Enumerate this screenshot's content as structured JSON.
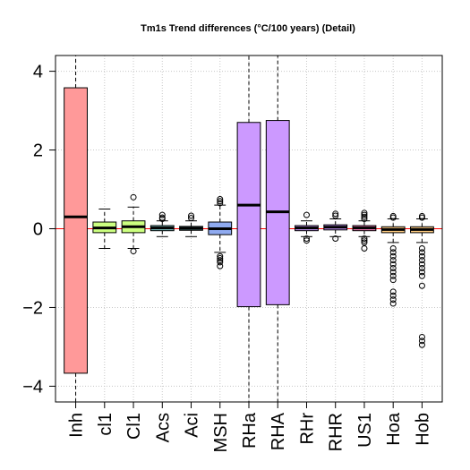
{
  "chart_data": {
    "type": "box",
    "title": "Tm1s Trend differences (°C/100 years) (Detail)",
    "xlabel": "",
    "ylabel": "",
    "ylim": [
      -4.4,
      4.4
    ],
    "yticks": [
      -4,
      -2,
      0,
      2,
      4
    ],
    "ytick_labels": [
      "−4",
      "−2",
      "0",
      "2",
      "4"
    ],
    "grid": true,
    "reference_line": {
      "y": 0,
      "color": "#ff0000"
    },
    "categories": [
      "Inh",
      "cl1",
      "Cl1",
      "Acs",
      "Aci",
      "MSH",
      "RHa",
      "RHA",
      "RHr",
      "RHR",
      "US1",
      "Hoa",
      "Hob"
    ],
    "boxes": [
      {
        "label": "Inh",
        "q1": -3.67,
        "median": 0.3,
        "q3": 3.58,
        "whisker_low": -4.4,
        "whisker_high": 4.4,
        "outliers": [],
        "color": "#ff9999",
        "whisker_style": "dashed"
      },
      {
        "label": "cl1",
        "q1": -0.1,
        "median": 0.02,
        "q3": 0.17,
        "whisker_low": -0.5,
        "whisker_high": 0.5,
        "outliers": [],
        "color": "#ccff80",
        "whisker_style": "dashed"
      },
      {
        "label": "Cl1",
        "q1": -0.1,
        "median": 0.05,
        "q3": 0.2,
        "whisker_low": -0.5,
        "whisker_high": 0.55,
        "outliers": [
          0.8,
          -0.57
        ],
        "color": "#ccff80",
        "whisker_style": "dashed"
      },
      {
        "label": "Acs",
        "q1": -0.05,
        "median": 0.02,
        "q3": 0.08,
        "whisker_low": -0.2,
        "whisker_high": 0.2,
        "outliers": [
          0.35,
          0.28,
          0.25
        ],
        "color": "#80c8c8",
        "whisker_style": "dashed"
      },
      {
        "label": "Aci",
        "q1": -0.04,
        "median": 0.01,
        "q3": 0.06,
        "whisker_low": -0.2,
        "whisker_high": 0.2,
        "outliers": [
          0.33,
          0.27
        ],
        "color": "#80c8c8",
        "whisker_style": "dashed"
      },
      {
        "label": "MSH",
        "q1": -0.15,
        "median": 0.0,
        "q3": 0.17,
        "whisker_low": -0.6,
        "whisker_high": 0.6,
        "outliers": [
          0.75,
          0.7,
          0.65,
          -0.7,
          -0.75,
          -0.8,
          -0.85,
          -0.95
        ],
        "color": "#8faaf0",
        "whisker_style": "dashed"
      },
      {
        "label": "RHa",
        "q1": -1.98,
        "median": 0.6,
        "q3": 2.7,
        "whisker_low": -4.4,
        "whisker_high": 4.4,
        "outliers": [],
        "color": "#cc99ff",
        "whisker_style": "dashed"
      },
      {
        "label": "RHA",
        "q1": -1.93,
        "median": 0.43,
        "q3": 2.75,
        "whisker_low": -4.4,
        "whisker_high": 4.4,
        "outliers": [],
        "color": "#cc99ff",
        "whisker_style": "dashed"
      },
      {
        "label": "RHr",
        "q1": -0.05,
        "median": 0.02,
        "q3": 0.08,
        "whisker_low": -0.2,
        "whisker_high": 0.2,
        "outliers": [
          0.35,
          -0.25,
          -0.3
        ],
        "color": "#cc99ff",
        "whisker_style": "dashed"
      },
      {
        "label": "RHR",
        "q1": -0.03,
        "median": 0.04,
        "q3": 0.1,
        "whisker_low": -0.2,
        "whisker_high": 0.25,
        "outliers": [
          0.38,
          0.33,
          -0.25
        ],
        "color": "#cc99ff",
        "whisker_style": "dashed"
      },
      {
        "label": "US1",
        "q1": -0.05,
        "median": 0.02,
        "q3": 0.08,
        "whisker_low": -0.2,
        "whisker_high": 0.2,
        "outliers": [
          0.4,
          0.35,
          0.3,
          0.25,
          -0.25,
          -0.3,
          -0.35,
          -0.5
        ],
        "color": "#ff80c0",
        "whisker_style": "dashed"
      },
      {
        "label": "Hoa",
        "q1": -0.1,
        "median": -0.02,
        "q3": 0.05,
        "whisker_low": -0.35,
        "whisker_high": 0.25,
        "outliers": [
          0.32,
          0.28,
          -0.5,
          -0.6,
          -0.7,
          -0.8,
          -0.9,
          -1.0,
          -1.1,
          -1.2,
          -1.3,
          -1.6,
          -1.7,
          -1.8,
          -1.9
        ],
        "color": "#ffcc80",
        "whisker_style": "dashed"
      },
      {
        "label": "Hob",
        "q1": -0.1,
        "median": -0.02,
        "q3": 0.05,
        "whisker_low": -0.35,
        "whisker_high": 0.25,
        "outliers": [
          0.32,
          0.28,
          -0.5,
          -0.6,
          -0.7,
          -0.8,
          -0.9,
          -1.0,
          -1.1,
          -1.2,
          -1.45,
          -2.75,
          -2.85,
          -2.95
        ],
        "color": "#ffcc80",
        "whisker_style": "dashed"
      }
    ]
  }
}
